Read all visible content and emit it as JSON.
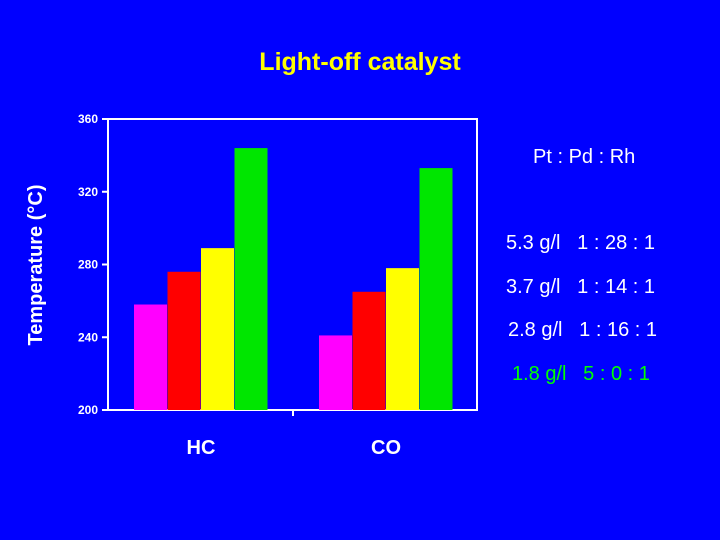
{
  "chart_data": {
    "type": "bar",
    "title": "Light-off catalyst",
    "ylabel": "Temperature (°C)",
    "xlabel": "",
    "ylim": [
      200,
      360
    ],
    "yticks": [
      200,
      240,
      280,
      320,
      360
    ],
    "categories": [
      "HC",
      "CO"
    ],
    "series": [
      {
        "loading": "5.3 g/l",
        "ratio": "1 : 28 : 1",
        "color": "#ff00ff",
        "values": [
          258,
          241
        ]
      },
      {
        "loading": "3.7 g/l",
        "ratio": "1 : 14 : 1",
        "color": "#ff0000",
        "values": [
          276,
          265
        ]
      },
      {
        "loading": "2.8 g/l",
        "ratio": "1 : 16 : 1",
        "color": "#ffff00",
        "values": [
          289,
          278
        ]
      },
      {
        "loading": "1.8 g/l",
        "ratio": "5 : 0 : 1",
        "color": "#00e600",
        "values": [
          344,
          333
        ]
      }
    ],
    "legend_header": "Pt : Pd : Rh",
    "legend_text_colors": [
      "#ffffff",
      "#ffffff",
      "#ffffff",
      "#00ff00"
    ],
    "grid": false
  }
}
